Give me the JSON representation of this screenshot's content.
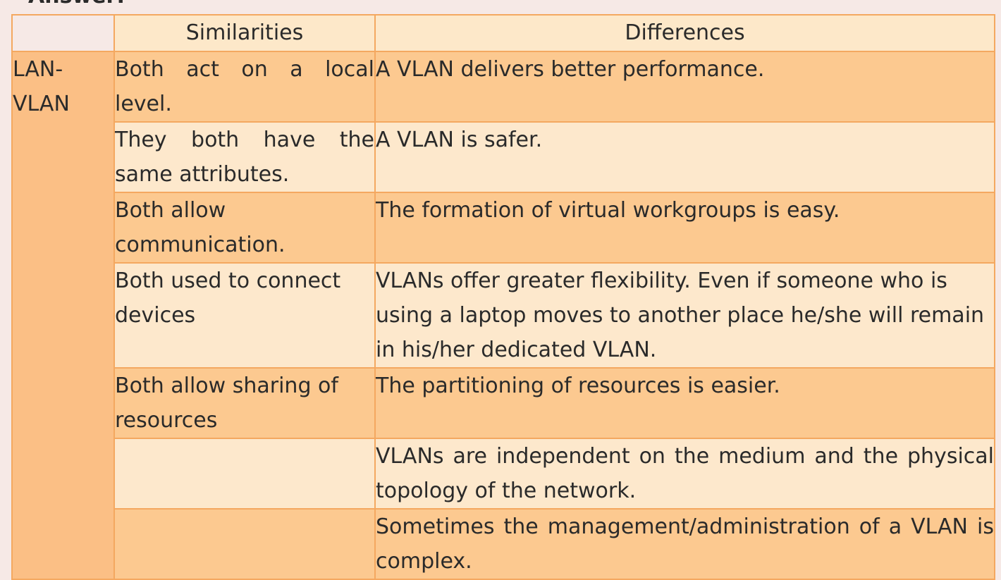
{
  "heading": "Answer:",
  "table": {
    "headers": {
      "similarities": "Similarities",
      "differences": "Differences"
    },
    "row_label": "LAN-\nVLAN",
    "rows": [
      {
        "similarity": "Both act on a local level.",
        "difference": "A VLAN delivers better performance."
      },
      {
        "similarity": "They both have the same attributes.",
        "difference": "A VLAN is safer."
      },
      {
        "similarity": "Both allow communication.",
        "difference": "The formation of virtual workgroups is easy."
      },
      {
        "similarity": "Both used to connect devices",
        "difference": "VLANs offer greater flexibility. Even if someone who is using a laptop moves to another place he/she will remain in his/her dedicated VLAN."
      },
      {
        "similarity": "Both allow sharing of resources",
        "difference": "The partitioning of resources is easier."
      },
      {
        "similarity": "",
        "difference": "VLANs are independent on the medium and the physical topology of the network."
      },
      {
        "similarity": "",
        "difference": "Sometimes the management/administration of a VLAN is complex."
      }
    ]
  },
  "colors": {
    "border": "#f4a860",
    "row_label_bg": "#fbbf85",
    "dark_row_bg": "#fcc990",
    "light_row_bg": "#fde8cc",
    "header_bg": "#fde8c9"
  }
}
